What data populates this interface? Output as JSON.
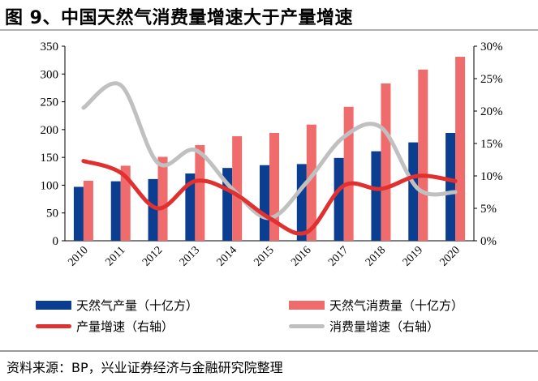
{
  "page": {
    "title": "图 9、中国天然气消费量增速大于产量增速",
    "source": "资料来源：BP，兴业证券经济与金融研究院整理"
  },
  "chart_data": {
    "type": "bar",
    "categories": [
      "2010",
      "2011",
      "2012",
      "2013",
      "2014",
      "2015",
      "2016",
      "2017",
      "2018",
      "2019",
      "2020"
    ],
    "series": [
      {
        "name": "天然气产量（十亿方）",
        "kind": "bar",
        "axis": "left",
        "color": "#0b3d91",
        "values": [
          97,
          107,
          111,
          121,
          131,
          136,
          138,
          149,
          161,
          177,
          194
        ]
      },
      {
        "name": "天然气消费量（十亿方）",
        "kind": "bar",
        "axis": "left",
        "color": "#f06b6b",
        "values": [
          108,
          135,
          151,
          172,
          188,
          194,
          209,
          241,
          283,
          308,
          331
        ]
      },
      {
        "name": "产量增速（右轴）",
        "kind": "line",
        "axis": "right",
        "color": "#e03030",
        "values": [
          0.123,
          0.105,
          0.05,
          0.092,
          0.075,
          0.035,
          0.013,
          0.085,
          0.08,
          0.1,
          0.092
        ]
      },
      {
        "name": "消费量增速（右轴）",
        "kind": "line",
        "axis": "right",
        "color": "#c0c0c0",
        "values": [
          0.205,
          0.24,
          0.12,
          0.14,
          0.08,
          0.035,
          0.09,
          0.16,
          0.175,
          0.08,
          0.075
        ]
      }
    ],
    "yleft": {
      "min": 0,
      "max": 350,
      "ticks": [
        "0",
        "50",
        "100",
        "150",
        "200",
        "250",
        "300",
        "350"
      ]
    },
    "yright": {
      "min": 0,
      "max": 0.3,
      "ticks": [
        "0%",
        "5%",
        "10%",
        "15%",
        "20%",
        "25%",
        "30%"
      ]
    },
    "grid": false,
    "legend_position": "bottom"
  }
}
